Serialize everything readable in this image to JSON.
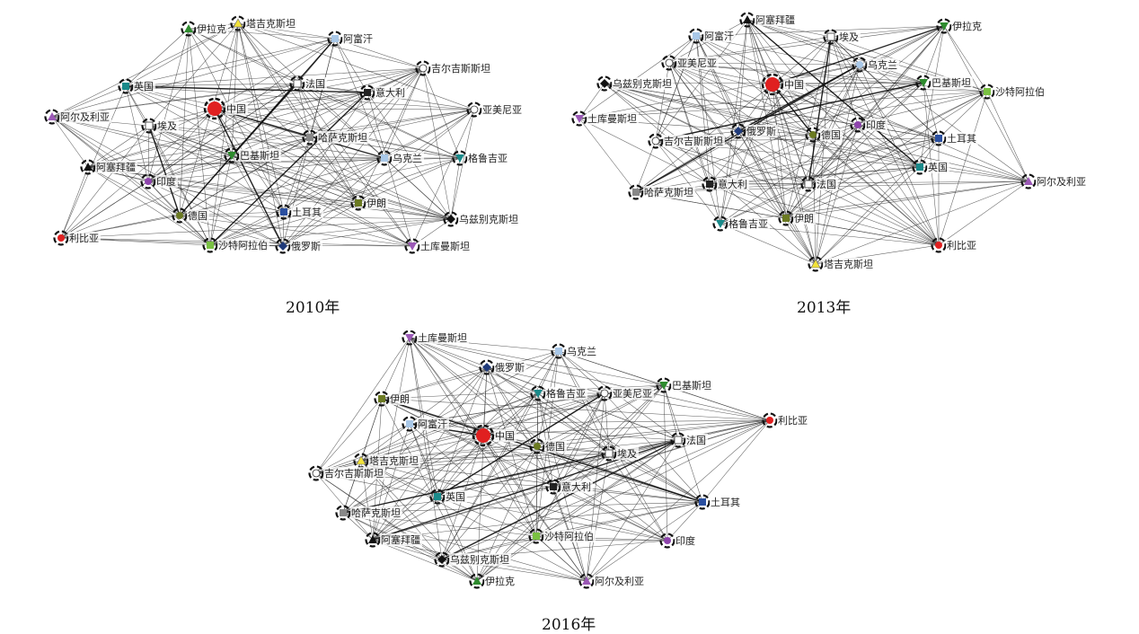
{
  "panels": [
    {
      "caption": "2010年",
      "nodes": [
        {
          "id": "中国",
          "color": "#e02020",
          "shape": "circle-big"
        },
        {
          "id": "塔吉克斯坦",
          "color": "#f2e23a",
          "shape": "tri-up"
        },
        {
          "id": "伊拉克",
          "color": "#2e8b2e",
          "shape": "tri-up"
        },
        {
          "id": "阿富汗",
          "color": "#a9c8e8",
          "shape": "square"
        },
        {
          "id": "吉尔吉斯斯坦",
          "color": "#ffffff",
          "shape": "circle"
        },
        {
          "id": "英国",
          "color": "#1a8a8a",
          "shape": "square"
        },
        {
          "id": "法国",
          "color": "#ffffff",
          "shape": "square"
        },
        {
          "id": "意大利",
          "color": "#222222",
          "shape": "square"
        },
        {
          "id": "亚美尼亚",
          "color": "#ffffff",
          "shape": "circle"
        },
        {
          "id": "阿尔及利亚",
          "color": "#9b59b6",
          "shape": "tri-up"
        },
        {
          "id": "埃及",
          "color": "#ffffff",
          "shape": "square"
        },
        {
          "id": "哈萨克斯坦",
          "color": "#888888",
          "shape": "square"
        },
        {
          "id": "乌克兰",
          "color": "#a9c8e8",
          "shape": "square"
        },
        {
          "id": "巴基斯坦",
          "color": "#2e8b2e",
          "shape": "tri-down"
        },
        {
          "id": "格鲁吉亚",
          "color": "#1a8a8a",
          "shape": "tri-down"
        },
        {
          "id": "阿塞拜疆",
          "color": "#111111",
          "shape": "tri-up"
        },
        {
          "id": "印度",
          "color": "#8e44ad",
          "shape": "circle"
        },
        {
          "id": "伊朗",
          "color": "#6b7a22",
          "shape": "square"
        },
        {
          "id": "德国",
          "color": "#6b7a22",
          "shape": "circle"
        },
        {
          "id": "土耳其",
          "color": "#2a4fa0",
          "shape": "square"
        },
        {
          "id": "乌兹别克斯坦",
          "color": "#111111",
          "shape": "diamond"
        },
        {
          "id": "利比亚",
          "color": "#e02020",
          "shape": "circle"
        },
        {
          "id": "沙特阿拉伯",
          "color": "#7ac142",
          "shape": "square"
        },
        {
          "id": "俄罗斯",
          "color": "#1f3a7a",
          "shape": "diamond"
        },
        {
          "id": "土库曼斯坦",
          "color": "#9b59b6",
          "shape": "tri-down"
        }
      ]
    },
    {
      "caption": "2013年",
      "nodes": [
        {
          "id": "中国",
          "color": "#e02020",
          "shape": "circle-big"
        },
        {
          "id": "阿塞拜疆",
          "color": "#111111",
          "shape": "tri-up"
        },
        {
          "id": "伊拉克",
          "color": "#2e8b2e",
          "shape": "tri-down"
        },
        {
          "id": "阿富汗",
          "color": "#a9c8e8",
          "shape": "square"
        },
        {
          "id": "埃及",
          "color": "#ffffff",
          "shape": "square"
        },
        {
          "id": "亚美尼亚",
          "color": "#ffffff",
          "shape": "circle"
        },
        {
          "id": "乌克兰",
          "color": "#a9c8e8",
          "shape": "circle"
        },
        {
          "id": "乌兹别克斯坦",
          "color": "#111111",
          "shape": "diamond"
        },
        {
          "id": "巴基斯坦",
          "color": "#2e8b2e",
          "shape": "tri-down"
        },
        {
          "id": "沙特阿拉伯",
          "color": "#7ac142",
          "shape": "square"
        },
        {
          "id": "土库曼斯坦",
          "color": "#9b59b6",
          "shape": "tri-down"
        },
        {
          "id": "印度",
          "color": "#8e44ad",
          "shape": "circle"
        },
        {
          "id": "俄罗斯",
          "color": "#1f3a7a",
          "shape": "diamond"
        },
        {
          "id": "德国",
          "color": "#6b7a22",
          "shape": "circle"
        },
        {
          "id": "吉尔吉斯斯坦",
          "color": "#ffffff",
          "shape": "circle"
        },
        {
          "id": "土耳其",
          "color": "#2a4fa0",
          "shape": "square"
        },
        {
          "id": "英国",
          "color": "#1a8a8a",
          "shape": "square"
        },
        {
          "id": "阿尔及利亚",
          "color": "#9b59b6",
          "shape": "tri-up"
        },
        {
          "id": "哈萨克斯坦",
          "color": "#888888",
          "shape": "square"
        },
        {
          "id": "意大利",
          "color": "#222222",
          "shape": "square"
        },
        {
          "id": "法国",
          "color": "#ffffff",
          "shape": "square"
        },
        {
          "id": "格鲁吉亚",
          "color": "#1a8a8a",
          "shape": "tri-down"
        },
        {
          "id": "伊朗",
          "color": "#6b7a22",
          "shape": "square"
        },
        {
          "id": "利比亚",
          "color": "#e02020",
          "shape": "circle"
        },
        {
          "id": "塔吉克斯坦",
          "color": "#f2e23a",
          "shape": "tri-up"
        }
      ]
    },
    {
      "caption": "2016年",
      "nodes": [
        {
          "id": "土库曼斯坦",
          "color": "#9b59b6",
          "shape": "tri-down"
        },
        {
          "id": "乌克兰",
          "color": "#a9c8e8",
          "shape": "square"
        },
        {
          "id": "俄罗斯",
          "color": "#1f3a7a",
          "shape": "diamond"
        },
        {
          "id": "格鲁吉亚",
          "color": "#1a8a8a",
          "shape": "tri-down"
        },
        {
          "id": "亚美尼亚",
          "color": "#ffffff",
          "shape": "circle"
        },
        {
          "id": "巴基斯坦",
          "color": "#2e8b2e",
          "shape": "tri-down"
        },
        {
          "id": "伊朗",
          "color": "#6b7a22",
          "shape": "square"
        },
        {
          "id": "利比亚",
          "color": "#e02020",
          "shape": "circle"
        },
        {
          "id": "阿富汗",
          "color": "#a9c8e8",
          "shape": "square"
        },
        {
          "id": "中国",
          "color": "#e02020",
          "shape": "circle-big"
        },
        {
          "id": "德国",
          "color": "#6b7a22",
          "shape": "circle"
        },
        {
          "id": "法国",
          "color": "#ffffff",
          "shape": "square"
        },
        {
          "id": "埃及",
          "color": "#ffffff",
          "shape": "square"
        },
        {
          "id": "塔吉克斯坦",
          "color": "#f2e23a",
          "shape": "tri-up"
        },
        {
          "id": "吉尔吉斯斯坦",
          "color": "#ffffff",
          "shape": "circle"
        },
        {
          "id": "意大利",
          "color": "#222222",
          "shape": "square"
        },
        {
          "id": "英国",
          "color": "#1a8a8a",
          "shape": "square"
        },
        {
          "id": "土耳其",
          "color": "#2a4fa0",
          "shape": "square"
        },
        {
          "id": "哈萨克斯坦",
          "color": "#888888",
          "shape": "square"
        },
        {
          "id": "阿塞拜疆",
          "color": "#111111",
          "shape": "tri-up"
        },
        {
          "id": "沙特阿拉伯",
          "color": "#7ac142",
          "shape": "square"
        },
        {
          "id": "印度",
          "color": "#8e44ad",
          "shape": "circle"
        },
        {
          "id": "乌兹别克斯坦",
          "color": "#111111",
          "shape": "diamond"
        },
        {
          "id": "伊拉克",
          "color": "#2e8b2e",
          "shape": "tri-up"
        },
        {
          "id": "阿尔及利亚",
          "color": "#9b59b6",
          "shape": "tri-up"
        }
      ]
    }
  ]
}
